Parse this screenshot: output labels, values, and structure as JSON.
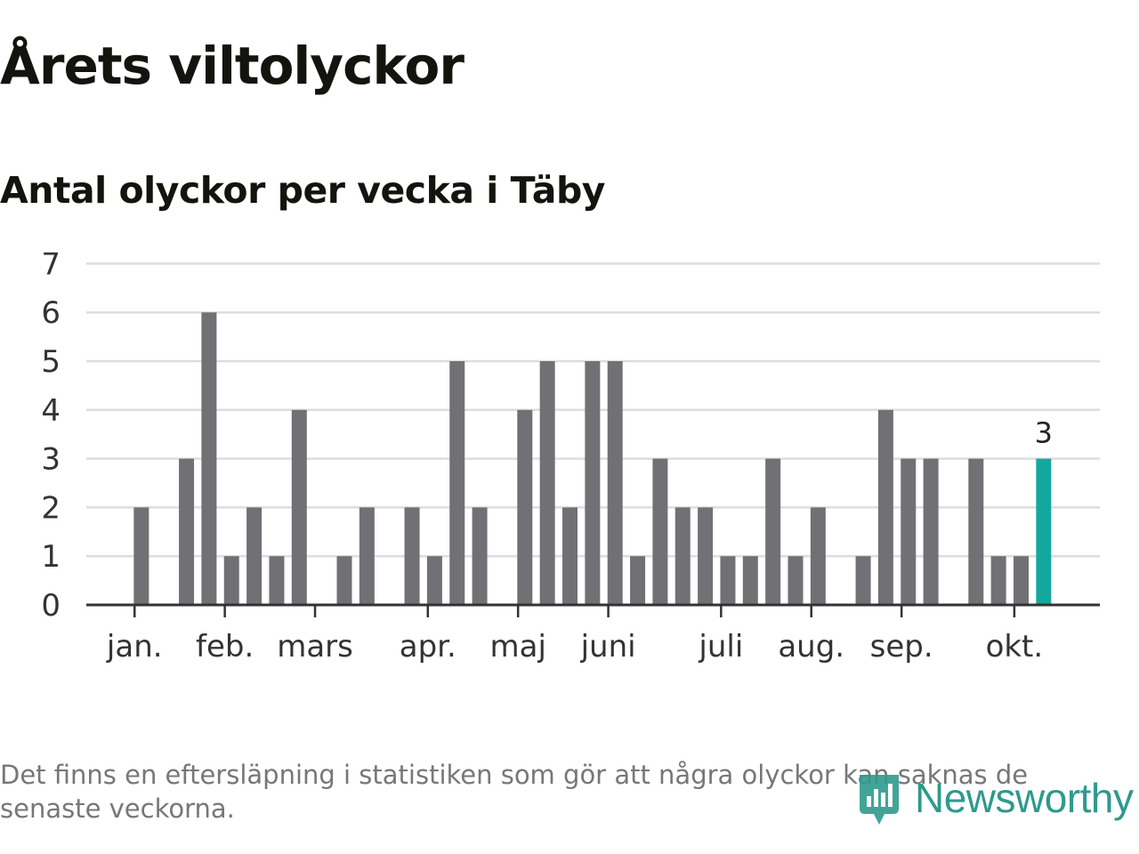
{
  "header": {
    "title": "Årets viltolyckor",
    "subtitle": "Antal olyckor per vecka i Täby"
  },
  "footer": {
    "note": "Det finns en eftersläpning i statistiken som gör att några olyckor kan saknas de senaste veckorna.",
    "brand": "Newsworthy"
  },
  "colors": {
    "bar": "#717075",
    "highlight": "#13a89e",
    "grid": "#dddddd",
    "axis": "#333333",
    "brand": "#2e9a8c"
  },
  "chart_data": {
    "type": "bar",
    "title": "Antal olyckor per vecka i Täby",
    "xlabel": "",
    "ylabel": "",
    "ylim": [
      0,
      7
    ],
    "yticks": [
      0,
      1,
      2,
      3,
      4,
      5,
      6,
      7
    ],
    "grid": true,
    "weeks": [
      1,
      2,
      3,
      4,
      5,
      6,
      7,
      8,
      9,
      10,
      11,
      12,
      13,
      14,
      15,
      16,
      17,
      18,
      19,
      20,
      21,
      22,
      23,
      24,
      25,
      26,
      27,
      28,
      29,
      30,
      31,
      32,
      33,
      34,
      35,
      36,
      37,
      38,
      39,
      40,
      41,
      42
    ],
    "values": [
      0,
      2,
      0,
      3,
      6,
      1,
      2,
      1,
      4,
      0,
      1,
      2,
      0,
      2,
      1,
      5,
      2,
      0,
      4,
      5,
      2,
      5,
      5,
      1,
      3,
      2,
      2,
      1,
      1,
      3,
      1,
      2,
      0,
      1,
      4,
      3,
      3,
      0,
      3,
      1,
      1,
      3
    ],
    "highlight_week": 42,
    "data_labels": [
      {
        "week": 42,
        "text": "3"
      }
    ],
    "months": [
      {
        "label": "jan.",
        "week": 1.7
      },
      {
        "label": "feb.",
        "week": 5.7
      },
      {
        "label": "mars",
        "week": 9.7
      },
      {
        "label": "apr.",
        "week": 14.7
      },
      {
        "label": "maj",
        "week": 18.7
      },
      {
        "label": "juni",
        "week": 22.7
      },
      {
        "label": "juli",
        "week": 27.7
      },
      {
        "label": "aug.",
        "week": 31.7
      },
      {
        "label": "sep.",
        "week": 35.7
      },
      {
        "label": "okt.",
        "week": 40.7
      }
    ]
  }
}
